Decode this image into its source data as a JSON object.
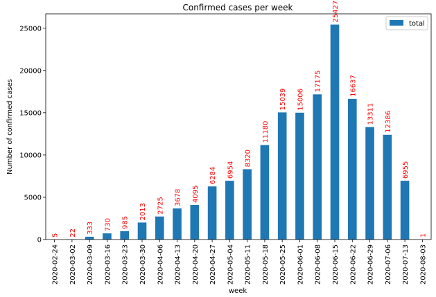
{
  "chart_data": {
    "type": "bar",
    "title": "Confirmed cases per week",
    "xlabel": "week",
    "ylabel": "Number of confirmed cases",
    "categories": [
      "2020-02-24",
      "2020-03-02",
      "2020-03-09",
      "2020-03-16",
      "2020-03-23",
      "2020-03-30",
      "2020-04-06",
      "2020-04-13",
      "2020-04-20",
      "2020-04-27",
      "2020-05-04",
      "2020-05-11",
      "2020-05-18",
      "2020-05-25",
      "2020-06-01",
      "2020-06-08",
      "2020-06-15",
      "2020-06-22",
      "2020-06-29",
      "2020-07-06",
      "2020-07-13",
      "2020-08-03"
    ],
    "series": [
      {
        "name": "total",
        "values": [
          5,
          22,
          333,
          730,
          985,
          2013,
          2725,
          3678,
          4095,
          6284,
          6954,
          8320,
          11180,
          15039,
          15006,
          17175,
          25427,
          16637,
          13311,
          12386,
          6955,
          1
        ]
      }
    ],
    "yticks": [
      0,
      5000,
      10000,
      15000,
      20000,
      25000
    ],
    "ylim": [
      0,
      26700
    ],
    "grid": false,
    "legend_position": "top-right",
    "colors": {
      "bar": "#1f77b4",
      "label": "#ff0000",
      "axis": "#000000"
    }
  }
}
